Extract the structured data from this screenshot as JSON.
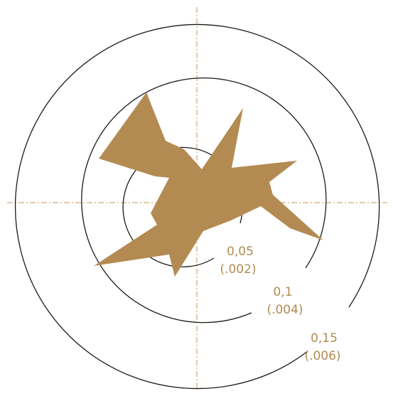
{
  "colors": {
    "shape": "#b38b52",
    "ring": "#1a1a1a",
    "axis": "#c8965a",
    "label": "#b38b52"
  },
  "rings": [
    {
      "metric": "0,05",
      "imperial": "(.002)"
    },
    {
      "metric": "0,1",
      "imperial": "(.004)"
    },
    {
      "metric": "0,15",
      "imperial": "(.006)"
    }
  ]
}
